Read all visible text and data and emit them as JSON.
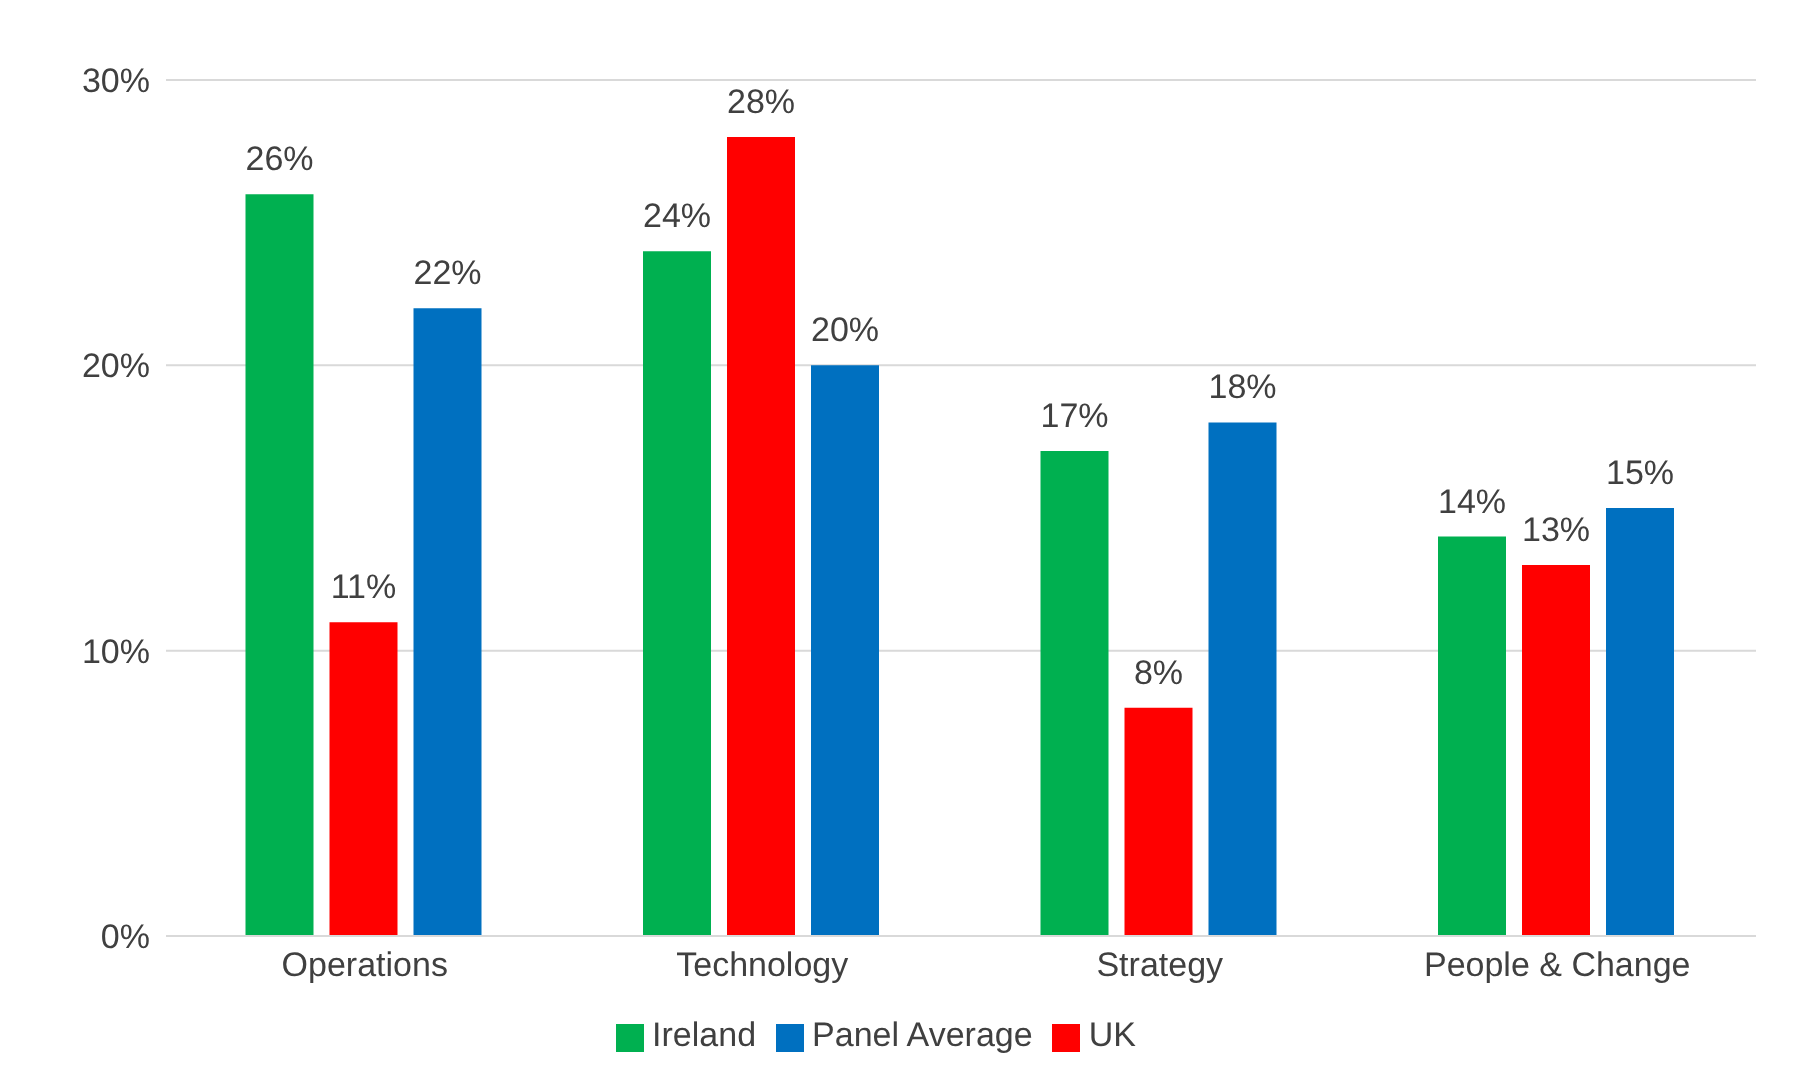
{
  "chart_data": {
    "type": "bar",
    "categories": [
      "Operations",
      "Technology",
      "Strategy",
      "People & Change"
    ],
    "series": [
      {
        "name": "Ireland",
        "color": "#00b050",
        "values": [
          26,
          24,
          17,
          14
        ],
        "value_labels": [
          "26%",
          "24%",
          "17%",
          "14%"
        ]
      },
      {
        "name": "UK",
        "color": "#ff0000",
        "values": [
          11,
          28,
          8,
          13
        ],
        "value_labels": [
          "11%",
          "28%",
          "8%",
          "13%"
        ]
      },
      {
        "name": "Panel Average",
        "color": "#0070c0",
        "values": [
          22,
          20,
          18,
          15
        ],
        "value_labels": [
          "22%",
          "20%",
          "18%",
          "15%"
        ]
      }
    ],
    "ylim": [
      0,
      30
    ],
    "yticks": [
      {
        "value": 0,
        "label": "0%"
      },
      {
        "value": 10,
        "label": "10%"
      },
      {
        "value": 20,
        "label": "20%"
      },
      {
        "value": 30,
        "label": "30%"
      }
    ],
    "grid": "y",
    "legend": "bottom"
  }
}
